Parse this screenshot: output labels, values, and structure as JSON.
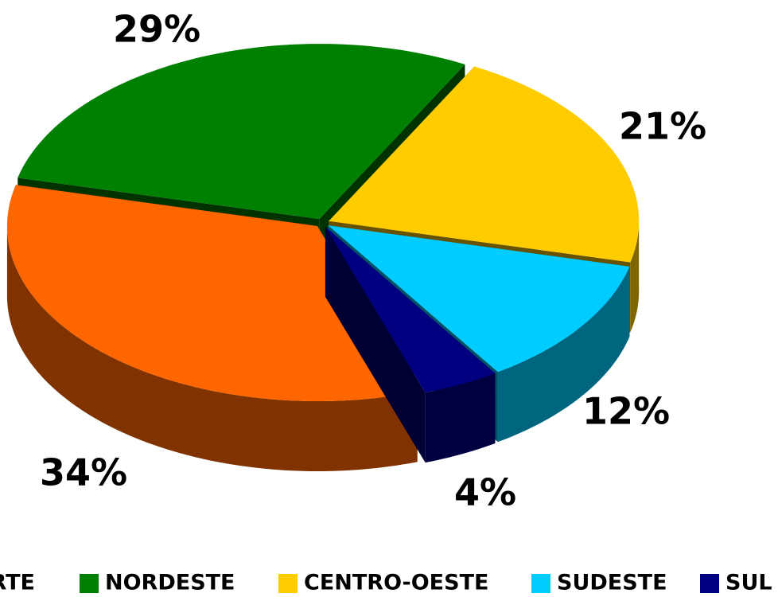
{
  "chart_data": {
    "type": "pie3d",
    "categories": [
      "NORTE",
      "NORDESTE",
      "CENTRO-OESTE",
      "SUDESTE",
      "SUL"
    ],
    "values": [
      34,
      29,
      21,
      12,
      4
    ],
    "value_labels": [
      "34%",
      "29%",
      "21%",
      "12%",
      "4%"
    ],
    "colors": [
      "#ff6600",
      "#008000",
      "#ffcc00",
      "#00ccff",
      "#000080"
    ],
    "legend": "bottom"
  }
}
